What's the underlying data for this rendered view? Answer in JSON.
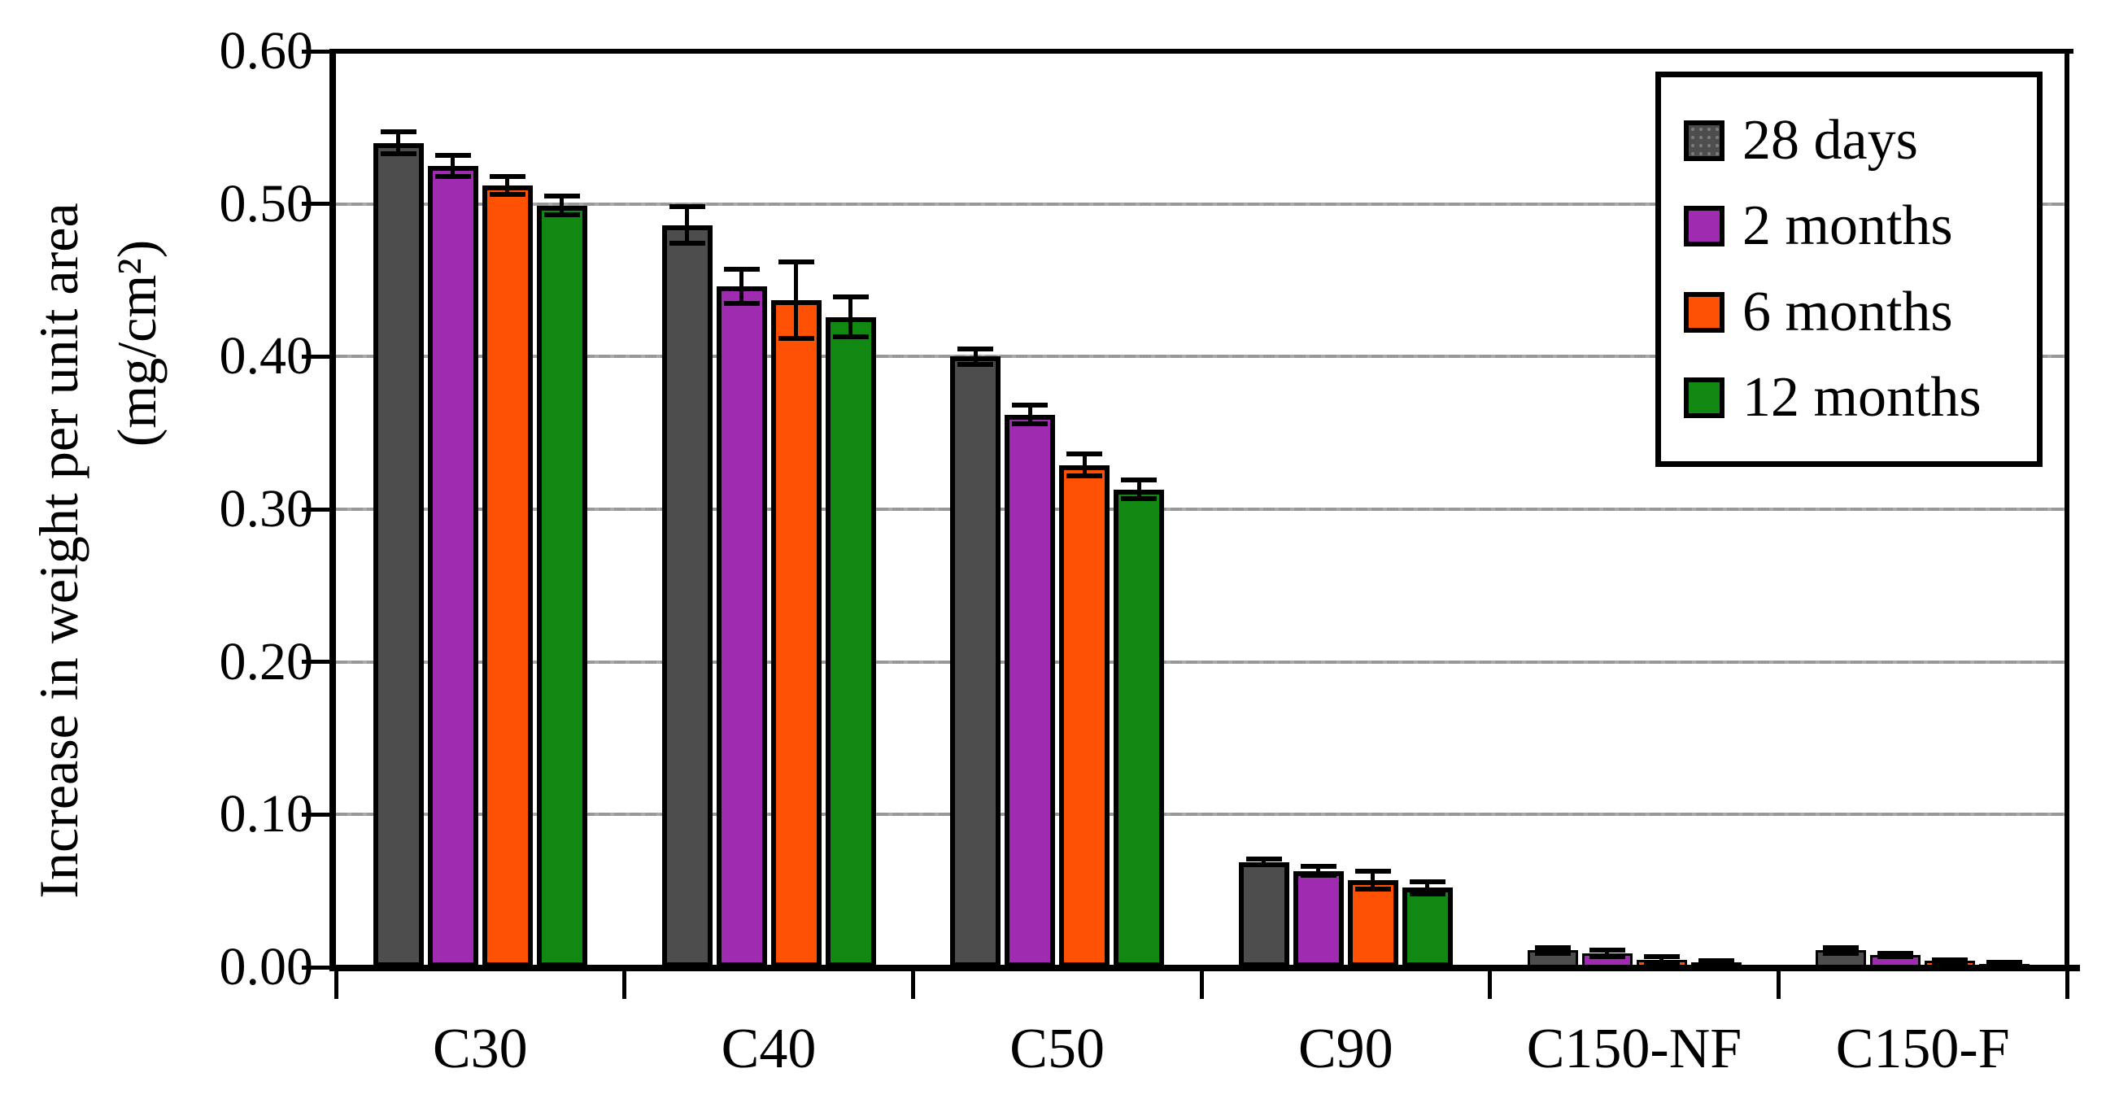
{
  "chart_data": {
    "type": "bar",
    "title": "",
    "ylabel_line1": "Increase in weight per unit area",
    "ylabel_line2": "(mg/cm²)",
    "xlabel": "",
    "categories": [
      "C30",
      "C40",
      "C50",
      "C90",
      "C150-NF",
      "C150-F"
    ],
    "series": [
      {
        "name": "28 days",
        "color": "#4d4d4d",
        "pattern": "dots",
        "values": [
          0.54,
          0.486,
          0.4,
          0.069,
          0.011,
          0.011
        ],
        "errors": [
          0.007,
          0.012,
          0.005,
          0.002,
          0.002,
          0.002
        ]
      },
      {
        "name": "2 months",
        "color": "#9e2bb0",
        "pattern": "solid",
        "values": [
          0.525,
          0.446,
          0.362,
          0.063,
          0.009,
          0.008
        ],
        "errors": [
          0.007,
          0.011,
          0.006,
          0.003,
          0.002,
          0.001
        ]
      },
      {
        "name": "6 months",
        "color": "#fe5104",
        "pattern": "solid",
        "values": [
          0.512,
          0.437,
          0.329,
          0.057,
          0.005,
          0.004
        ],
        "errors": [
          0.006,
          0.025,
          0.007,
          0.006,
          0.002,
          0.001
        ]
      },
      {
        "name": "12 months",
        "color": "#118811",
        "pattern": "solid",
        "values": [
          0.499,
          0.426,
          0.313,
          0.052,
          0.003,
          0.002
        ],
        "errors": [
          0.006,
          0.013,
          0.006,
          0.004,
          0.001,
          0.001
        ]
      }
    ],
    "y_ticks": [
      "0.60",
      "0.50",
      "0.40",
      "0.30",
      "0.20",
      "0.10",
      "0.00"
    ],
    "ylim": [
      0.0,
      0.6
    ],
    "grid": true,
    "error_bars": true,
    "legend_position": "top-right-inside",
    "frame_color": "#000000",
    "gridline_color": "#9a9a9a"
  }
}
